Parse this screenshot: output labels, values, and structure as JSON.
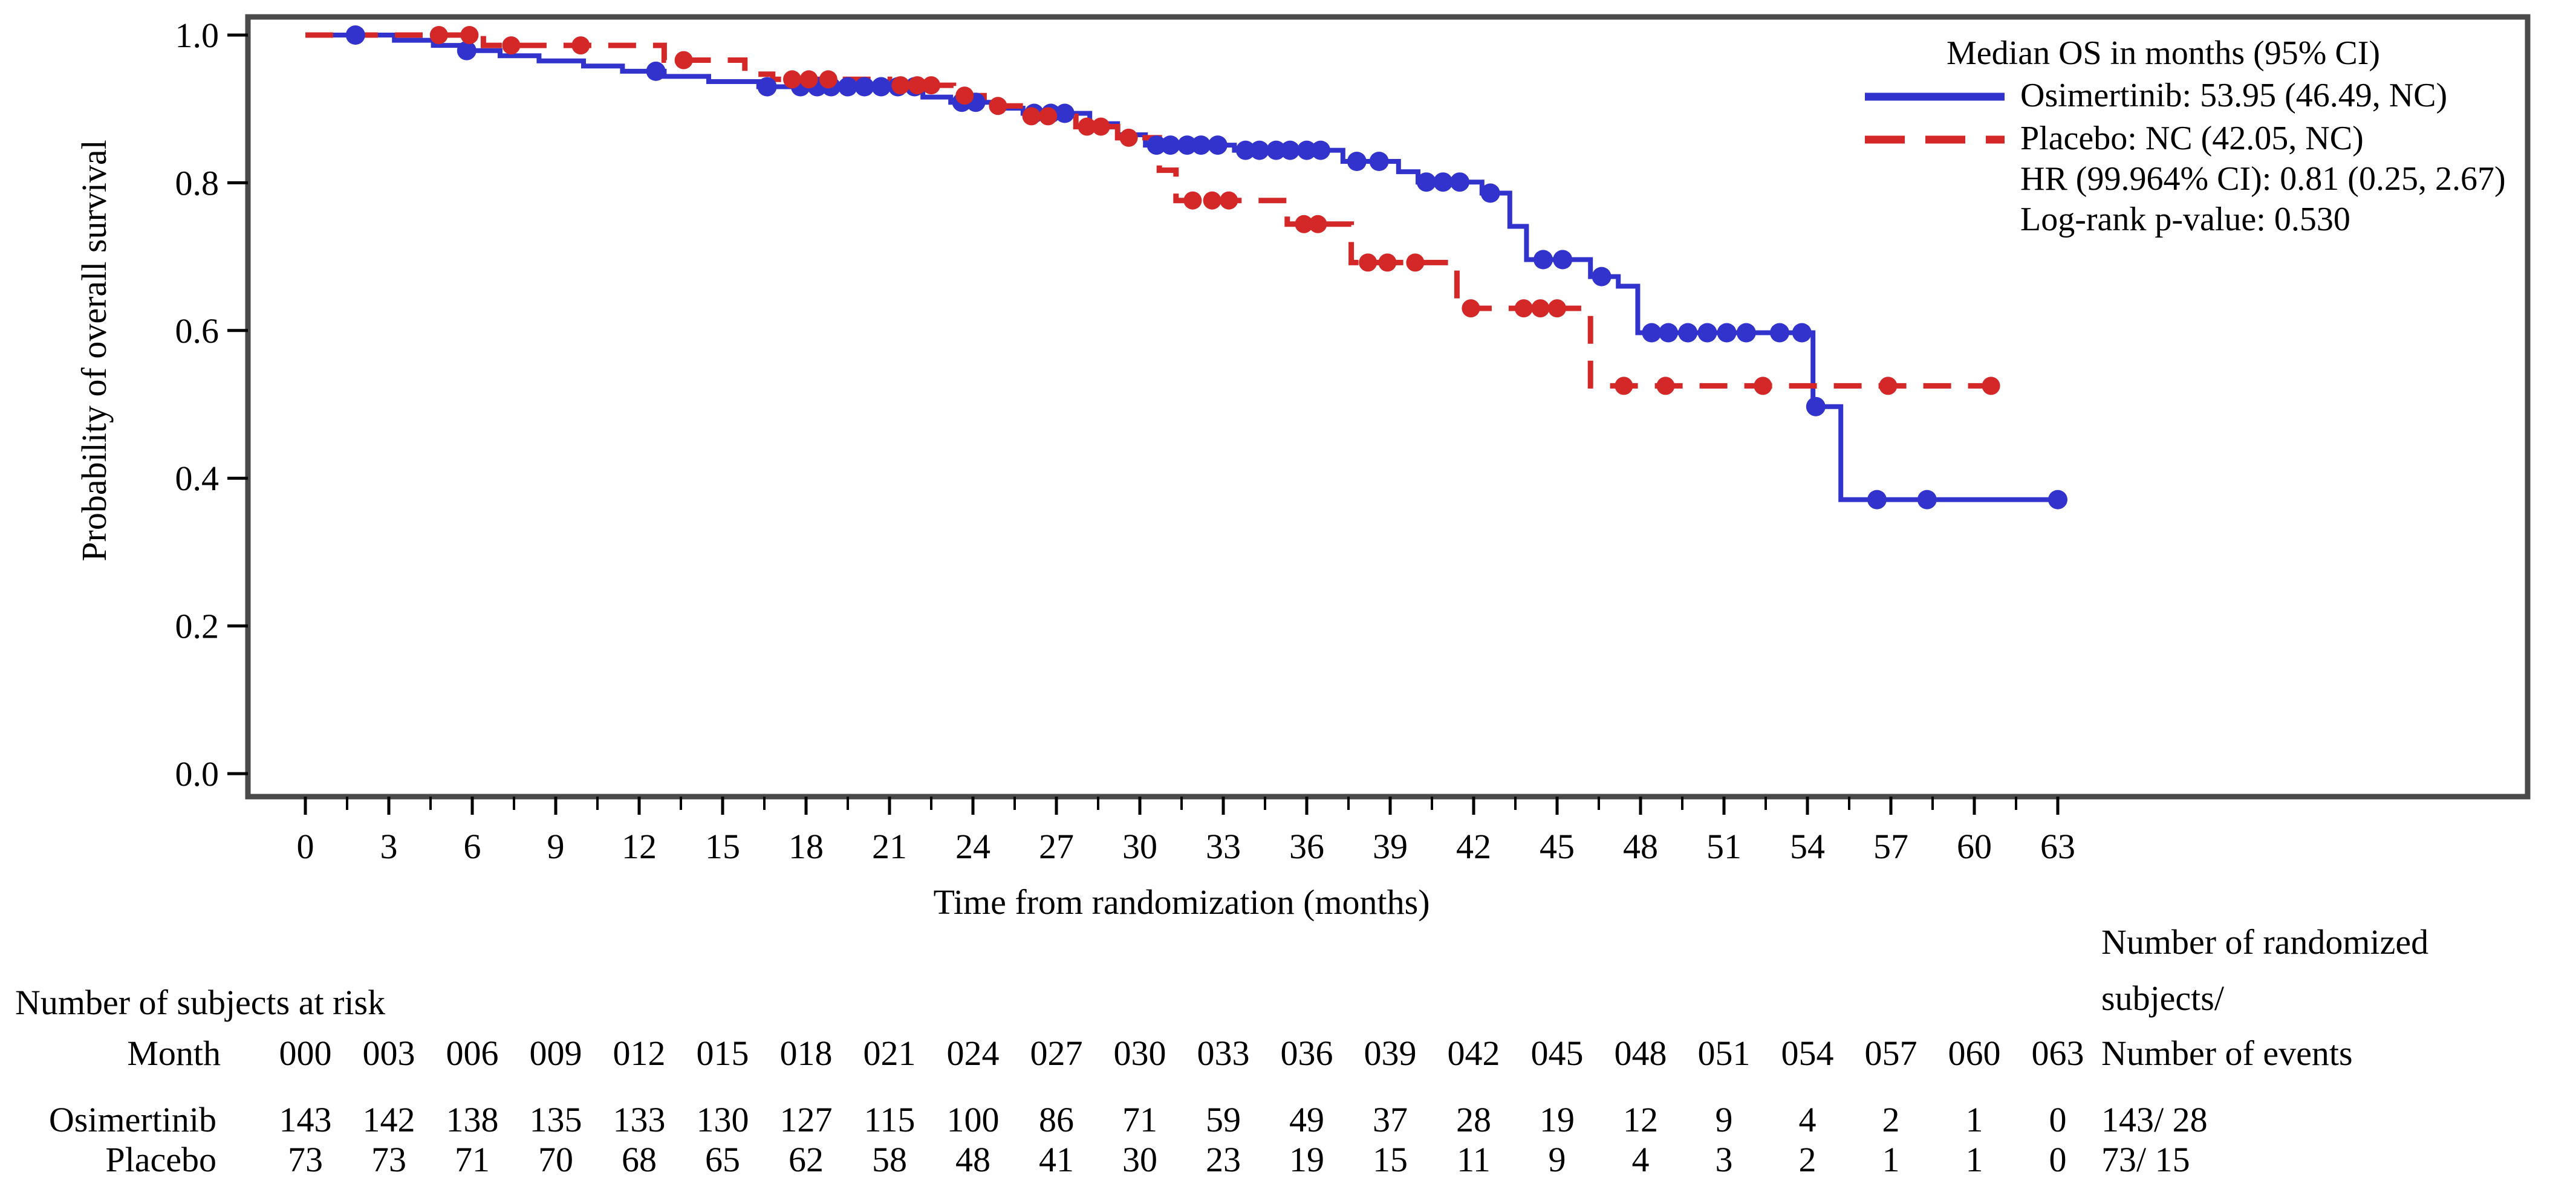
{
  "chart_data": {
    "type": "line",
    "subtype": "kaplan-meier-step",
    "title": "",
    "xlabel": "Time from randomization (months)",
    "ylabel": "Probability of overall survival",
    "xlim": [
      0,
      63
    ],
    "ylim": [
      0.0,
      1.0
    ],
    "grid": false,
    "legend_position": "top-right",
    "axes": {
      "x_major_ticks": [
        0,
        3,
        6,
        9,
        12,
        15,
        18,
        21,
        24,
        27,
        30,
        33,
        36,
        39,
        42,
        45,
        48,
        51,
        54,
        57,
        60,
        63
      ],
      "x_minor_tick_interval": 1.5,
      "y_ticks": [
        1.0,
        0.8,
        0.6,
        0.4,
        0.2,
        0.0
      ]
    },
    "legend": {
      "title": "Median OS in months (95% CI)"
    },
    "annotations": [
      "HR (99.964% CI): 0.81 (0.25, 2.67)",
      "Log-rank p-value: 0.530"
    ],
    "series": [
      {
        "name": "Osimertinib",
        "label": "Osimertinib: 53.95 (46.49, NC)",
        "median_os_months": "53.95 (46.49, NC)",
        "color": "#3232cd",
        "style": "solid",
        "start": [
          0,
          1.0
        ],
        "end_time": 63.0,
        "step_points": [
          [
            3.2,
            0.993
          ],
          [
            4.6,
            0.986
          ],
          [
            5.6,
            0.979
          ],
          [
            7.0,
            0.972
          ],
          [
            8.4,
            0.965
          ],
          [
            10.0,
            0.958
          ],
          [
            11.4,
            0.951
          ],
          [
            12.9,
            0.944
          ],
          [
            14.5,
            0.937
          ],
          [
            16.3,
            0.93
          ],
          [
            22.2,
            0.916
          ],
          [
            23.2,
            0.909
          ],
          [
            24.8,
            0.901
          ],
          [
            25.8,
            0.894
          ],
          [
            28.2,
            0.88
          ],
          [
            29.2,
            0.865
          ],
          [
            30.2,
            0.851
          ],
          [
            33.4,
            0.844
          ],
          [
            37.3,
            0.829
          ],
          [
            39.3,
            0.815
          ],
          [
            40.0,
            0.801
          ],
          [
            42.3,
            0.786
          ],
          [
            43.3,
            0.741
          ],
          [
            43.9,
            0.696
          ],
          [
            46.2,
            0.673
          ],
          [
            47.2,
            0.66
          ],
          [
            47.9,
            0.597
          ],
          [
            54.2,
            0.497
          ],
          [
            55.2,
            0.371
          ]
        ],
        "censor_marks": [
          [
            1.8,
            1.0
          ],
          [
            5.8,
            0.979
          ],
          [
            12.6,
            0.951
          ],
          [
            16.6,
            0.93
          ],
          [
            17.8,
            0.93
          ],
          [
            18.4,
            0.93
          ],
          [
            18.9,
            0.93
          ],
          [
            19.5,
            0.93
          ],
          [
            20.1,
            0.93
          ],
          [
            20.7,
            0.93
          ],
          [
            21.3,
            0.93
          ],
          [
            21.9,
            0.93
          ],
          [
            23.6,
            0.909
          ],
          [
            24.1,
            0.909
          ],
          [
            26.2,
            0.894
          ],
          [
            26.8,
            0.894
          ],
          [
            27.3,
            0.894
          ],
          [
            30.6,
            0.851
          ],
          [
            31.1,
            0.851
          ],
          [
            31.7,
            0.851
          ],
          [
            32.2,
            0.851
          ],
          [
            32.8,
            0.851
          ],
          [
            33.8,
            0.844
          ],
          [
            34.3,
            0.844
          ],
          [
            34.9,
            0.844
          ],
          [
            35.4,
            0.844
          ],
          [
            36.0,
            0.844
          ],
          [
            36.5,
            0.844
          ],
          [
            37.8,
            0.829
          ],
          [
            38.6,
            0.829
          ],
          [
            40.3,
            0.801
          ],
          [
            40.9,
            0.801
          ],
          [
            41.5,
            0.801
          ],
          [
            42.6,
            0.786
          ],
          [
            44.5,
            0.696
          ],
          [
            45.2,
            0.696
          ],
          [
            46.6,
            0.673
          ],
          [
            48.4,
            0.597
          ],
          [
            49.0,
            0.597
          ],
          [
            49.7,
            0.597
          ],
          [
            50.4,
            0.597
          ],
          [
            51.1,
            0.597
          ],
          [
            51.8,
            0.597
          ],
          [
            53.0,
            0.597
          ],
          [
            53.8,
            0.597
          ],
          [
            54.3,
            0.497
          ],
          [
            56.5,
            0.371
          ],
          [
            58.3,
            0.371
          ],
          [
            63.0,
            0.371
          ]
        ]
      },
      {
        "name": "Placebo",
        "label": "Placebo: NC (42.05, NC)",
        "median_os_months": "NC (42.05, NC)",
        "color": "#d42828",
        "style": "dashed",
        "start": [
          0,
          1.0
        ],
        "end_time": 61.0,
        "step_points": [
          [
            6.4,
            0.986
          ],
          [
            12.9,
            0.966
          ],
          [
            15.8,
            0.947
          ],
          [
            16.8,
            0.94
          ],
          [
            21.0,
            0.932
          ],
          [
            23.3,
            0.918
          ],
          [
            24.4,
            0.904
          ],
          [
            25.7,
            0.89
          ],
          [
            27.7,
            0.876
          ],
          [
            29.2,
            0.861
          ],
          [
            30.7,
            0.817
          ],
          [
            31.3,
            0.776
          ],
          [
            35.3,
            0.744
          ],
          [
            37.6,
            0.692
          ],
          [
            41.4,
            0.63
          ],
          [
            46.2,
            0.525
          ]
        ],
        "censor_marks": [
          [
            4.8,
            1.0
          ],
          [
            5.9,
            1.0
          ],
          [
            7.4,
            0.986
          ],
          [
            9.9,
            0.986
          ],
          [
            13.6,
            0.966
          ],
          [
            17.5,
            0.94
          ],
          [
            18.1,
            0.94
          ],
          [
            18.8,
            0.94
          ],
          [
            21.4,
            0.932
          ],
          [
            22.0,
            0.932
          ],
          [
            22.5,
            0.932
          ],
          [
            23.7,
            0.918
          ],
          [
            24.9,
            0.904
          ],
          [
            26.1,
            0.89
          ],
          [
            26.7,
            0.89
          ],
          [
            28.1,
            0.876
          ],
          [
            28.6,
            0.876
          ],
          [
            29.6,
            0.861
          ],
          [
            31.9,
            0.776
          ],
          [
            32.6,
            0.776
          ],
          [
            33.2,
            0.776
          ],
          [
            35.9,
            0.744
          ],
          [
            36.4,
            0.744
          ],
          [
            38.2,
            0.692
          ],
          [
            38.9,
            0.692
          ],
          [
            39.9,
            0.692
          ],
          [
            41.9,
            0.63
          ],
          [
            43.8,
            0.63
          ],
          [
            44.4,
            0.63
          ],
          [
            45.0,
            0.63
          ],
          [
            47.4,
            0.525
          ],
          [
            48.9,
            0.525
          ],
          [
            52.4,
            0.525
          ],
          [
            56.9,
            0.525
          ],
          [
            60.6,
            0.525
          ]
        ]
      }
    ],
    "risk_table": {
      "header": "Number of subjects at risk",
      "month_label": "Month",
      "months": [
        "000",
        "003",
        "006",
        "009",
        "012",
        "015",
        "018",
        "021",
        "024",
        "027",
        "030",
        "033",
        "036",
        "039",
        "042",
        "045",
        "048",
        "051",
        "054",
        "057",
        "060",
        "063"
      ],
      "right_header": [
        "Number of randomized",
        "subjects/",
        "Number of events"
      ],
      "rows": [
        {
          "name": "Osimertinib",
          "counts": [
            "143",
            "142",
            "138",
            "135",
            "133",
            "130",
            "127",
            "115",
            "100",
            "86",
            "71",
            "59",
            "49",
            "37",
            "28",
            "19",
            "12",
            "9",
            "4",
            "2",
            "1",
            "0"
          ],
          "total": "143/ 28"
        },
        {
          "name": "Placebo",
          "counts": [
            "73",
            "73",
            "71",
            "70",
            "68",
            "65",
            "62",
            "58",
            "48",
            "41",
            "30",
            "23",
            "19",
            "15",
            "11",
            "9",
            "4",
            "3",
            "2",
            "1",
            "1",
            "0"
          ],
          "total": "73/ 15"
        }
      ]
    }
  }
}
